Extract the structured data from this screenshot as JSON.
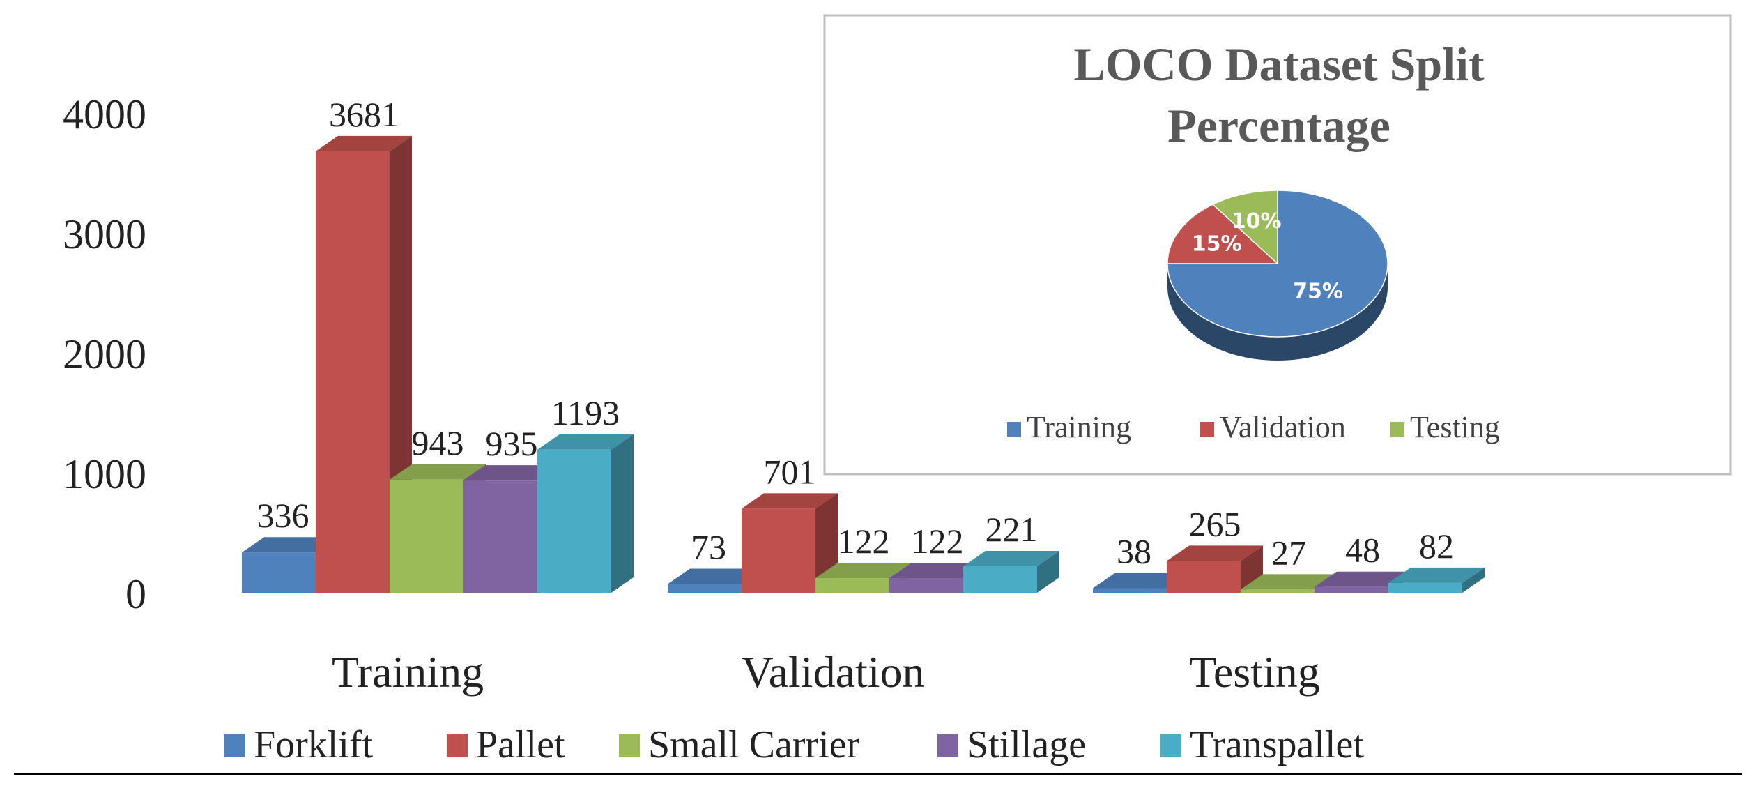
{
  "chart_data": [
    {
      "type": "bar",
      "subtype": "3d-clustered-column",
      "categories": [
        "Training",
        "Validation",
        "Testing"
      ],
      "series": [
        {
          "name": "Forklift",
          "values": [
            336,
            73,
            38
          ],
          "color": "#4f81bd"
        },
        {
          "name": "Pallet",
          "values": [
            3681,
            701,
            265
          ],
          "color": "#c0504d"
        },
        {
          "name": "Small Carrier",
          "values": [
            943,
            122,
            27
          ],
          "color": "#9bbb59"
        },
        {
          "name": "Stillage",
          "values": [
            935,
            122,
            48
          ],
          "color": "#8064a2"
        },
        {
          "name": "Transpallet",
          "values": [
            1193,
            221,
            82
          ],
          "color": "#4bacc6"
        }
      ],
      "yticks": [
        "0",
        "1000",
        "2000",
        "3000",
        "4000"
      ],
      "ylim": [
        0,
        4000
      ],
      "title": "",
      "xlabel": "",
      "ylabel": "",
      "grid": false,
      "legend": "bottom"
    },
    {
      "type": "pie",
      "subtype": "3d-pie",
      "title": "LOCO Dataset Split Percentage",
      "title_lines": [
        "LOCO Dataset Split",
        "Percentage"
      ],
      "slices": [
        {
          "name": "Training",
          "value": 75,
          "label": "75%",
          "color": "#4f81bd"
        },
        {
          "name": "Validation",
          "value": 15,
          "label": "15%",
          "color": "#c0504d"
        },
        {
          "name": "Testing",
          "value": 10,
          "label": "10%",
          "color": "#9bbb59"
        }
      ],
      "legend": "bottom"
    }
  ]
}
